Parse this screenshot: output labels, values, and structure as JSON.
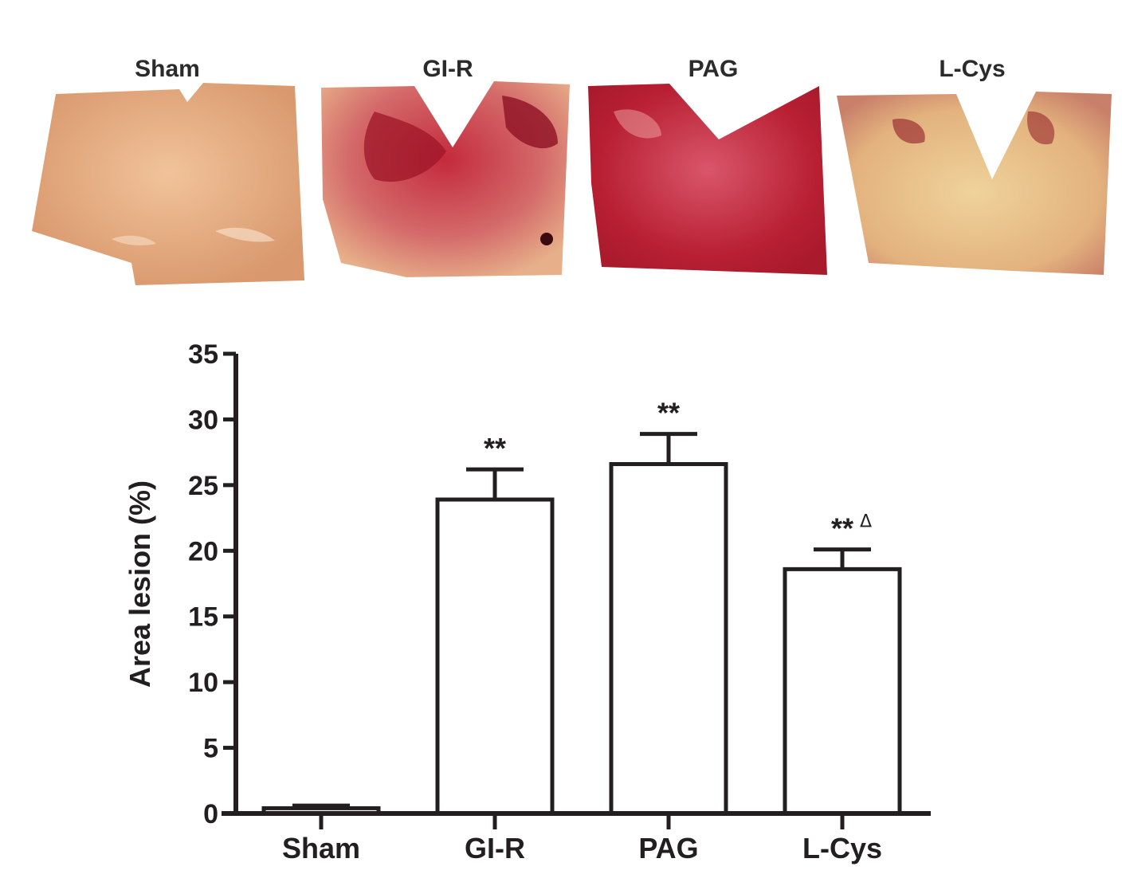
{
  "photos": [
    {
      "label": "Sham"
    },
    {
      "label": "GI-R"
    },
    {
      "label": "PAG"
    },
    {
      "label": "L-Cys"
    }
  ],
  "colors": {
    "axis": "#231f20",
    "bar_fill": "#ffffff",
    "tissue_base": "#e6a77a",
    "tissue_lesion": "#b3202f"
  },
  "chart_data": {
    "type": "bar",
    "categories": [
      "Sham",
      "GI-R",
      "PAG",
      "L-Cys"
    ],
    "values": [
      0.4,
      23.9,
      26.6,
      18.6
    ],
    "errors": [
      0.2,
      2.3,
      2.3,
      1.5
    ],
    "annotations": [
      {
        "text": "",
        "delta": ""
      },
      {
        "text": "**",
        "delta": ""
      },
      {
        "text": "**",
        "delta": ""
      },
      {
        "text": "**",
        "delta": "Δ"
      }
    ],
    "title": "",
    "xlabel": "",
    "ylabel": "Area lesion (%)",
    "ylim": [
      0,
      35
    ],
    "yticks": [
      0,
      5,
      10,
      15,
      20,
      25,
      30,
      35
    ],
    "grid": false,
    "legend": "none"
  }
}
